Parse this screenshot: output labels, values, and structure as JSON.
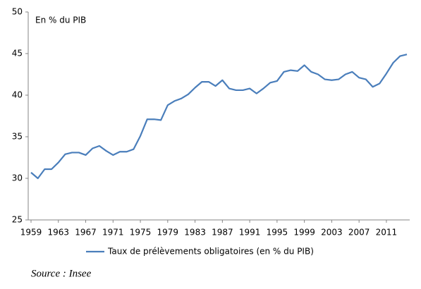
{
  "chart_data": {
    "type": "line",
    "annotation": "En % du PIB",
    "source": "Source : Insee",
    "x": [
      1959,
      1960,
      1961,
      1962,
      1963,
      1964,
      1965,
      1966,
      1967,
      1968,
      1969,
      1970,
      1971,
      1972,
      1973,
      1974,
      1975,
      1976,
      1977,
      1978,
      1979,
      1980,
      1981,
      1982,
      1983,
      1984,
      1985,
      1986,
      1987,
      1988,
      1989,
      1990,
      1991,
      1992,
      1993,
      1994,
      1995,
      1996,
      1997,
      1998,
      1999,
      2000,
      2001,
      2002,
      2003,
      2004,
      2005,
      2006,
      2007,
      2008,
      2009,
      2010,
      2011,
      2012,
      2013,
      2014
    ],
    "series": [
      {
        "name": "Taux de prélèvements obligatoires (en % du PIB)",
        "color": "#4a7ebb",
        "values": [
          30.7,
          30.0,
          31.1,
          31.1,
          31.9,
          32.9,
          33.1,
          33.1,
          32.8,
          33.6,
          33.9,
          33.3,
          32.8,
          33.2,
          33.2,
          33.5,
          35.1,
          37.1,
          37.1,
          37.0,
          38.8,
          39.3,
          39.6,
          40.1,
          40.9,
          41.6,
          41.6,
          41.1,
          41.8,
          40.8,
          40.6,
          40.6,
          40.8,
          40.2,
          40.8,
          41.5,
          41.7,
          42.8,
          43.0,
          42.9,
          43.6,
          42.8,
          42.5,
          41.9,
          41.8,
          41.9,
          42.5,
          42.8,
          42.1,
          41.9,
          41.0,
          41.4,
          42.6,
          43.9,
          44.7,
          44.9
        ]
      }
    ],
    "xlim": [
      1959,
      2014
    ],
    "xticks": [
      1959,
      1963,
      1967,
      1971,
      1975,
      1979,
      1983,
      1987,
      1991,
      1995,
      1999,
      2003,
      2007,
      2011
    ],
    "ylim": [
      25,
      50
    ],
    "yticks": [
      25,
      30,
      35,
      40,
      45,
      50
    ],
    "grid": false
  }
}
